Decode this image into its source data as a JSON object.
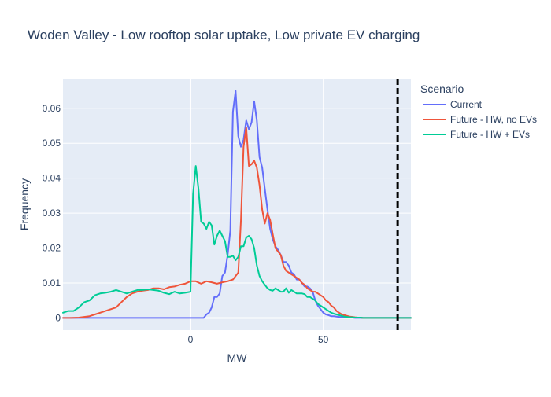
{
  "chart_data": {
    "type": "line",
    "title": "Woden Valley - Low rooftop solar uptake, Low private EV charging",
    "xlabel": "MW",
    "ylabel": "Frequency",
    "xlim": [
      -48,
      83
    ],
    "ylim": [
      -0.0035,
      0.0685
    ],
    "x_ticks": [
      0,
      50
    ],
    "y_ticks": [
      0,
      0.01,
      0.02,
      0.03,
      0.04,
      0.05,
      0.06
    ],
    "y_tick_labels": [
      "0",
      "0.01",
      "0.02",
      "0.03",
      "0.04",
      "0.05",
      "0.06"
    ],
    "grid": true,
    "legend": {
      "title": "Scenario",
      "placement": "right"
    },
    "vline": {
      "x": 78,
      "style": "dashed",
      "color": "#000000"
    },
    "series": [
      {
        "name": "Current",
        "color": "#636efa",
        "x": [
          -48,
          5,
          6,
          7,
          8,
          9,
          10,
          11,
          12,
          13,
          14,
          15,
          16,
          17,
          18,
          19,
          20,
          21,
          22,
          23,
          24,
          25,
          26,
          27,
          28,
          29,
          30,
          31,
          32,
          33,
          34,
          35,
          36,
          37,
          38,
          39,
          40,
          41,
          42,
          43,
          44,
          45,
          46,
          47,
          48,
          49,
          50,
          51,
          52,
          53,
          54,
          55,
          56,
          57,
          58,
          59,
          60,
          61,
          62,
          63,
          64,
          65,
          66,
          67,
          68,
          69,
          70,
          72,
          75,
          83
        ],
        "y": [
          0,
          0,
          0.001,
          0.0015,
          0.003,
          0.006,
          0.006,
          0.007,
          0.012,
          0.013,
          0.018,
          0.025,
          0.059,
          0.065,
          0.052,
          0.049,
          0.051,
          0.0565,
          0.054,
          0.056,
          0.062,
          0.0565,
          0.046,
          0.043,
          0.037,
          0.031,
          0.0255,
          0.0225,
          0.0205,
          0.0195,
          0.018,
          0.016,
          0.016,
          0.015,
          0.013,
          0.0125,
          0.011,
          0.011,
          0.01,
          0.009,
          0.009,
          0.0085,
          0.0075,
          0.005,
          0.0035,
          0.0025,
          0.0015,
          0.001,
          0.0008,
          0.0005,
          0.0005,
          0.0004,
          0.0003,
          0.0002,
          0.0002,
          0.0001,
          0.0001,
          0.0001,
          0,
          0,
          0,
          0,
          0,
          0,
          0,
          0,
          0,
          0,
          0,
          0
        ]
      },
      {
        "name": "Future - HW, no EVs",
        "color": "#ef553b",
        "x": [
          -48,
          -45,
          -42,
          -40,
          -38,
          -36,
          -34,
          -32,
          -30,
          -28,
          -26,
          -24,
          -22,
          -20,
          -18,
          -16,
          -14,
          -12,
          -10,
          -8,
          -6,
          -4,
          -2,
          0,
          2,
          4,
          6,
          8,
          10,
          12,
          14,
          16,
          18,
          19,
          20,
          21,
          22,
          23,
          24,
          25,
          26,
          27,
          28,
          29,
          30,
          31,
          32,
          33,
          34,
          35,
          36,
          37,
          38,
          39,
          40,
          41,
          42,
          43,
          44,
          45,
          46,
          47,
          48,
          49,
          50,
          51,
          52,
          53,
          54,
          55,
          56,
          57,
          58,
          59,
          60,
          61,
          62,
          63,
          64,
          65,
          66,
          67,
          68,
          69,
          70,
          72,
          75,
          83
        ],
        "y": [
          0,
          0,
          0.0001,
          0.0003,
          0.0005,
          0.001,
          0.0015,
          0.002,
          0.0025,
          0.003,
          0.0045,
          0.006,
          0.007,
          0.0075,
          0.0078,
          0.008,
          0.0085,
          0.0085,
          0.0082,
          0.0088,
          0.009,
          0.0095,
          0.0098,
          0.0105,
          0.0105,
          0.0098,
          0.0105,
          0.0102,
          0.0098,
          0.0102,
          0.0105,
          0.011,
          0.013,
          0.028,
          0.049,
          0.0545,
          0.0435,
          0.044,
          0.045,
          0.043,
          0.038,
          0.031,
          0.027,
          0.03,
          0.028,
          0.024,
          0.02,
          0.019,
          0.018,
          0.015,
          0.0135,
          0.013,
          0.0125,
          0.012,
          0.0115,
          0.011,
          0.01,
          0.0095,
          0.0085,
          0.008,
          0.0075,
          0.0075,
          0.007,
          0.0065,
          0.006,
          0.005,
          0.0045,
          0.0035,
          0.003,
          0.002,
          0.0015,
          0.001,
          0.0008,
          0.0006,
          0.0004,
          0.0003,
          0.0002,
          0.0001,
          0.0001,
          0,
          0,
          0,
          0,
          0,
          0,
          0,
          0,
          0
        ]
      },
      {
        "name": "Future - HW + EVs",
        "color": "#00cc96",
        "x": [
          -48,
          -46,
          -44,
          -42,
          -40,
          -38,
          -36,
          -34,
          -32,
          -30,
          -28,
          -26,
          -24,
          -22,
          -20,
          -18,
          -16,
          -14,
          -12,
          -10,
          -8,
          -6,
          -4,
          -2,
          0,
          1,
          2,
          3,
          4,
          5,
          6,
          7,
          8,
          9,
          10,
          11,
          12,
          13,
          14,
          15,
          16,
          17,
          18,
          19,
          20,
          21,
          22,
          23,
          24,
          25,
          26,
          27,
          28,
          29,
          30,
          31,
          32,
          33,
          34,
          35,
          36,
          37,
          38,
          39,
          40,
          41,
          42,
          43,
          44,
          45,
          46,
          47,
          48,
          49,
          50,
          51,
          52,
          53,
          54,
          55,
          56,
          57,
          58,
          59,
          60,
          61,
          62,
          63,
          64,
          65,
          66,
          67,
          68,
          70,
          72,
          75,
          83
        ],
        "y": [
          0.0015,
          0.002,
          0.002,
          0.003,
          0.0045,
          0.005,
          0.0065,
          0.007,
          0.0072,
          0.0075,
          0.008,
          0.0075,
          0.007,
          0.0075,
          0.008,
          0.008,
          0.0082,
          0.008,
          0.0078,
          0.0072,
          0.0068,
          0.0075,
          0.007,
          0.0072,
          0.0075,
          0.0355,
          0.0435,
          0.037,
          0.0275,
          0.027,
          0.0255,
          0.0275,
          0.0265,
          0.021,
          0.0235,
          0.025,
          0.0235,
          0.022,
          0.0175,
          0.0175,
          0.0178,
          0.0165,
          0.0175,
          0.0205,
          0.0205,
          0.023,
          0.0235,
          0.0225,
          0.02,
          0.015,
          0.012,
          0.0105,
          0.0095,
          0.0085,
          0.008,
          0.0078,
          0.0085,
          0.008,
          0.0075,
          0.0075,
          0.0085,
          0.0072,
          0.008,
          0.0075,
          0.007,
          0.007,
          0.007,
          0.0068,
          0.006,
          0.006,
          0.0055,
          0.005,
          0.004,
          0.0035,
          0.003,
          0.0025,
          0.002,
          0.0015,
          0.0012,
          0.001,
          0.0008,
          0.0006,
          0.0004,
          0.0003,
          0.0002,
          0.0002,
          0.0001,
          0.0001,
          0.0001,
          0,
          0,
          0,
          0,
          0,
          0,
          0,
          0
        ]
      }
    ]
  }
}
